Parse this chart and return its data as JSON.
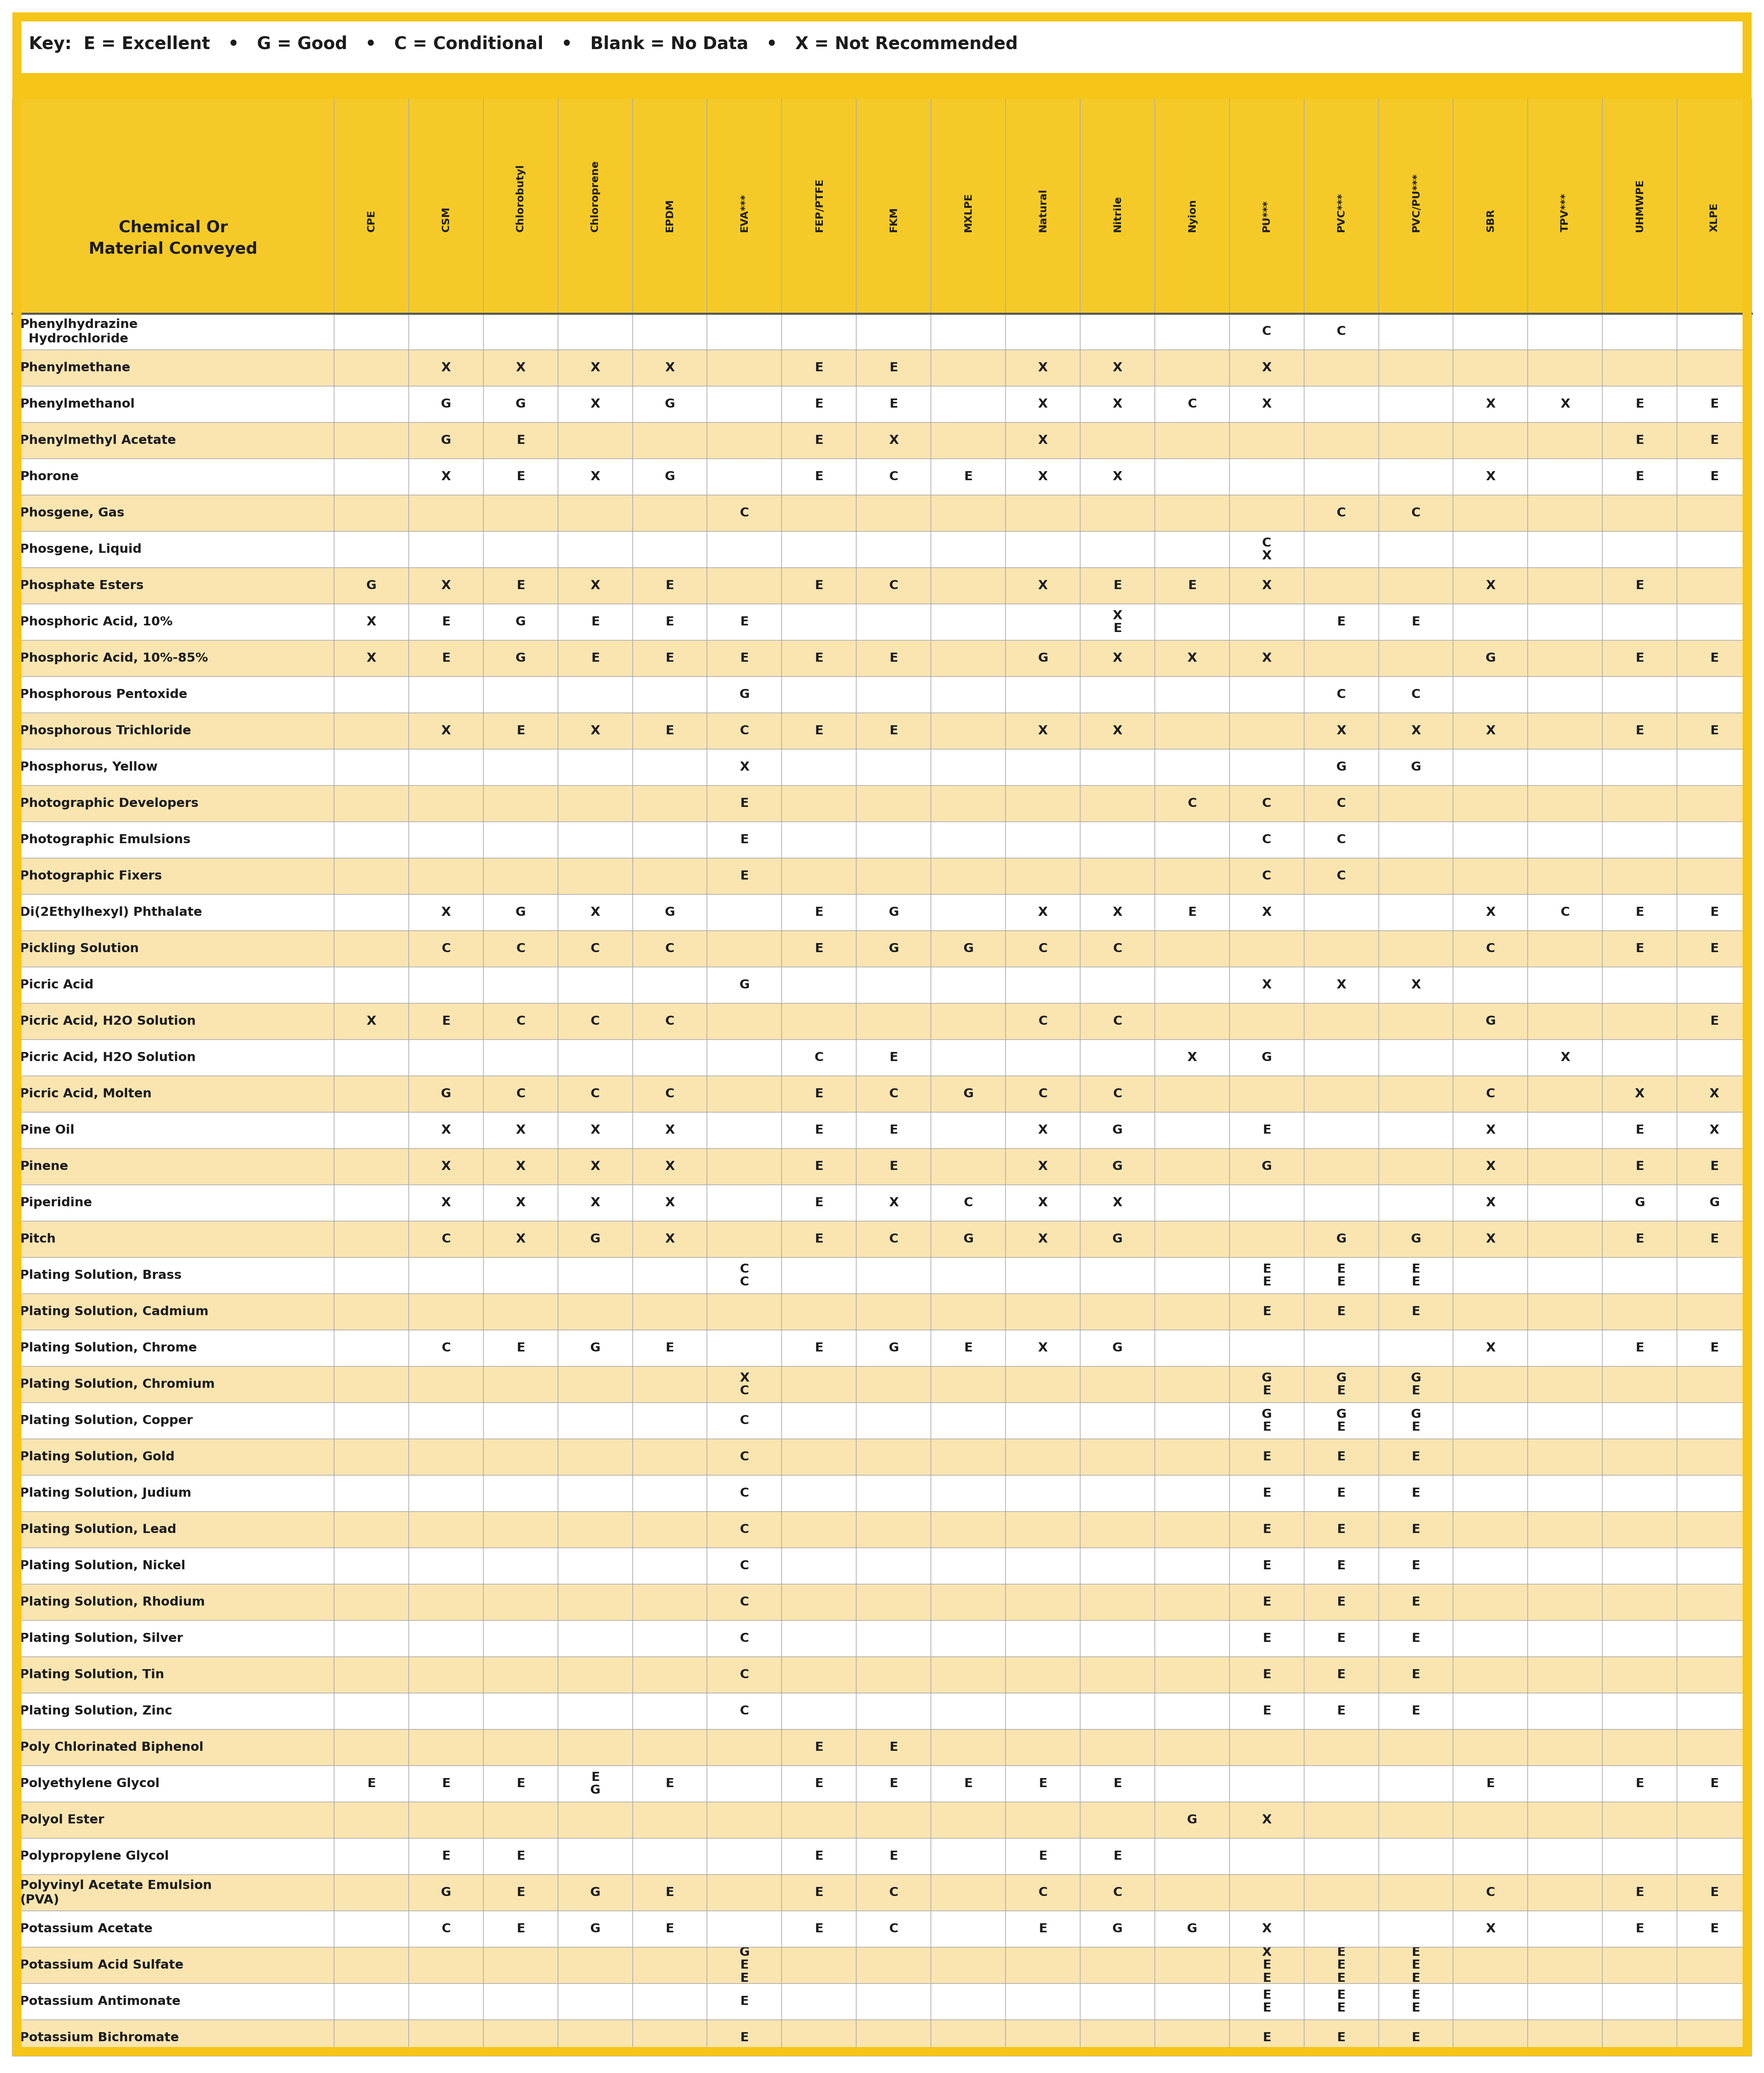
{
  "key_text": "Key:  E = Excellent   •   G = Good   •   C = Conditional   •   Blank = No Data   •   X = Not Recommended",
  "col_headers": [
    "CPE",
    "CSM",
    "Chlorobutyl",
    "Chloroprene",
    "EPDM",
    "EVA***",
    "FEP/PTFE",
    "FKM",
    "MXLPE",
    "Natural",
    "Nitrile",
    "Nyion",
    "PU***",
    "PVC***",
    "PVC/PU***",
    "SBR",
    "TPV***",
    "UHMWPE",
    "XLPE"
  ],
  "rows": [
    [
      "Phenylhydrazine\n  Hydrochloride",
      "",
      "",
      "",
      "",
      "",
      "",
      "",
      "",
      "",
      "",
      "",
      "",
      "C",
      "C",
      "",
      "",
      "",
      "",
      ""
    ],
    [
      "Phenylmethane",
      "",
      "X",
      "X",
      "X",
      "X",
      "",
      "E",
      "E",
      "",
      "X",
      "X",
      "",
      "X",
      "",
      "",
      "",
      "",
      "",
      ""
    ],
    [
      "Phenylmethanol",
      "",
      "G",
      "G",
      "X",
      "G",
      "",
      "E",
      "E",
      "",
      "X",
      "X",
      "C",
      "X",
      "",
      "",
      "X",
      "X",
      "E",
      "E"
    ],
    [
      "Phenylmethyl Acetate",
      "",
      "G",
      "E",
      "",
      "",
      "",
      "E",
      "X",
      "",
      "X",
      "",
      "",
      "",
      "",
      "",
      "",
      "",
      "E",
      "E"
    ],
    [
      "Phorone",
      "",
      "X",
      "E",
      "X",
      "G",
      "",
      "E",
      "C",
      "E",
      "X",
      "X",
      "",
      "",
      "",
      "",
      "X",
      "",
      "E",
      "E"
    ],
    [
      "Phosgene, Gas",
      "",
      "",
      "",
      "",
      "",
      "C",
      "",
      "",
      "",
      "",
      "",
      "",
      "",
      "C",
      "C",
      "",
      "",
      "",
      ""
    ],
    [
      "Phosgene, Liquid",
      "",
      "",
      "",
      "",
      "",
      "",
      "",
      "",
      "",
      "",
      "",
      "",
      "C\nX",
      "",
      "",
      "",
      "",
      "",
      ""
    ],
    [
      "Phosphate Esters",
      "G",
      "X",
      "E",
      "X",
      "E",
      "",
      "E",
      "C",
      "",
      "X",
      "E",
      "E",
      "X",
      "",
      "",
      "X",
      "",
      "E",
      ""
    ],
    [
      "Phosphoric Acid, 10%",
      "X",
      "E",
      "G",
      "E",
      "E",
      "E",
      "",
      "",
      "",
      "",
      "X\nE",
      "",
      "",
      "E",
      "E",
      "",
      "",
      "",
      ""
    ],
    [
      "Phosphoric Acid, 10%-85%",
      "X",
      "E",
      "G",
      "E",
      "E",
      "E",
      "E",
      "E",
      "",
      "G",
      "X",
      "X",
      "X",
      "",
      "",
      "G",
      "",
      "E",
      "E"
    ],
    [
      "Phosphorous Pentoxide",
      "",
      "",
      "",
      "",
      "",
      "G",
      "",
      "",
      "",
      "",
      "",
      "",
      "",
      "C",
      "C",
      "",
      "",
      "",
      ""
    ],
    [
      "Phosphorous Trichloride",
      "",
      "X",
      "E",
      "X",
      "E",
      "C",
      "E",
      "E",
      "",
      "X",
      "X",
      "",
      "",
      "X",
      "X",
      "X",
      "",
      "E",
      "E"
    ],
    [
      "Phosphorus, Yellow",
      "",
      "",
      "",
      "",
      "",
      "X",
      "",
      "",
      "",
      "",
      "",
      "",
      "",
      "G",
      "G",
      "",
      "",
      "",
      ""
    ],
    [
      "Photographic Developers",
      "",
      "",
      "",
      "",
      "",
      "E",
      "",
      "",
      "",
      "",
      "",
      "C",
      "C",
      "C",
      "",
      "",
      "",
      "",
      ""
    ],
    [
      "Photographic Emulsions",
      "",
      "",
      "",
      "",
      "",
      "E",
      "",
      "",
      "",
      "",
      "",
      "",
      "C",
      "C",
      "",
      "",
      "",
      "",
      ""
    ],
    [
      "Photographic Fixers",
      "",
      "",
      "",
      "",
      "",
      "E",
      "",
      "",
      "",
      "",
      "",
      "",
      "C",
      "C",
      "",
      "",
      "",
      "",
      ""
    ],
    [
      "Di(2Ethylhexyl) Phthalate",
      "",
      "X",
      "G",
      "X",
      "G",
      "",
      "E",
      "G",
      "",
      "X",
      "X",
      "E",
      "X",
      "",
      "",
      "X",
      "C",
      "E",
      "E"
    ],
    [
      "Pickling Solution",
      "",
      "C",
      "C",
      "C",
      "C",
      "",
      "E",
      "G",
      "G",
      "C",
      "C",
      "",
      "",
      "",
      "",
      "C",
      "",
      "E",
      "E"
    ],
    [
      "Picric Acid",
      "",
      "",
      "",
      "",
      "",
      "G",
      "",
      "",
      "",
      "",
      "",
      "",
      "X",
      "X",
      "X",
      "",
      "",
      "",
      ""
    ],
    [
      "Picric Acid, H2O Solution",
      "X",
      "E",
      "C",
      "C",
      "C",
      "",
      "",
      "",
      "",
      "C",
      "C",
      "",
      "",
      "",
      "",
      "G",
      "",
      "",
      "E"
    ],
    [
      "Picric Acid, H2O Solution",
      "",
      "",
      "",
      "",
      "",
      "",
      "C",
      "E",
      "",
      "",
      "",
      "X",
      "G",
      "",
      "",
      "",
      "X",
      "",
      ""
    ],
    [
      "Picric Acid, Molten",
      "",
      "G",
      "C",
      "C",
      "C",
      "",
      "E",
      "C",
      "G",
      "C",
      "C",
      "",
      "",
      "",
      "",
      "C",
      "",
      "X",
      "X"
    ],
    [
      "Pine Oil",
      "",
      "X",
      "X",
      "X",
      "X",
      "",
      "E",
      "E",
      "",
      "X",
      "G",
      "",
      "E",
      "",
      "",
      "X",
      "",
      "E",
      "X"
    ],
    [
      "Pinene",
      "",
      "X",
      "X",
      "X",
      "X",
      "",
      "E",
      "E",
      "",
      "X",
      "G",
      "",
      "G",
      "",
      "",
      "X",
      "",
      "E",
      "E"
    ],
    [
      "Piperidine",
      "",
      "X",
      "X",
      "X",
      "X",
      "",
      "E",
      "X",
      "C",
      "X",
      "X",
      "",
      "",
      "",
      "",
      "X",
      "",
      "G",
      "G"
    ],
    [
      "Pitch",
      "",
      "C",
      "X",
      "G",
      "X",
      "",
      "E",
      "C",
      "G",
      "X",
      "G",
      "",
      "",
      "G",
      "G",
      "X",
      "",
      "E",
      "E"
    ],
    [
      "Plating Solution, Brass",
      "",
      "",
      "",
      "",
      "",
      "C\nC",
      "",
      "",
      "",
      "",
      "",
      "",
      "E\nE",
      "E\nE",
      "E\nE",
      "",
      "",
      "",
      ""
    ],
    [
      "Plating Solution, Cadmium",
      "",
      "",
      "",
      "",
      "",
      "",
      "",
      "",
      "",
      "",
      "",
      "",
      "E",
      "E",
      "E",
      "",
      "",
      "",
      ""
    ],
    [
      "Plating Solution, Chrome",
      "",
      "C",
      "E",
      "G",
      "E",
      "",
      "E",
      "G",
      "E",
      "X",
      "G",
      "",
      "",
      "",
      "",
      "X",
      "",
      "E",
      "E"
    ],
    [
      "Plating Solution, Chromium",
      "",
      "",
      "",
      "",
      "",
      "X\nC",
      "",
      "",
      "",
      "",
      "",
      "",
      "G\nE",
      "G\nE",
      "G\nE",
      "",
      "",
      "",
      ""
    ],
    [
      "Plating Solution, Copper",
      "",
      "",
      "",
      "",
      "",
      "C",
      "",
      "",
      "",
      "",
      "",
      "",
      "G\nE",
      "G\nE",
      "G\nE",
      "",
      "",
      "",
      ""
    ],
    [
      "Plating Solution, Gold",
      "",
      "",
      "",
      "",
      "",
      "C",
      "",
      "",
      "",
      "",
      "",
      "",
      "E",
      "E",
      "E",
      "",
      "",
      "",
      ""
    ],
    [
      "Plating Solution, Judium",
      "",
      "",
      "",
      "",
      "",
      "C",
      "",
      "",
      "",
      "",
      "",
      "",
      "E",
      "E",
      "E",
      "",
      "",
      "",
      ""
    ],
    [
      "Plating Solution, Lead",
      "",
      "",
      "",
      "",
      "",
      "C",
      "",
      "",
      "",
      "",
      "",
      "",
      "E",
      "E",
      "E",
      "",
      "",
      "",
      ""
    ],
    [
      "Plating Solution, Nickel",
      "",
      "",
      "",
      "",
      "",
      "C",
      "",
      "",
      "",
      "",
      "",
      "",
      "E",
      "E",
      "E",
      "",
      "",
      "",
      ""
    ],
    [
      "Plating Solution, Rhodium",
      "",
      "",
      "",
      "",
      "",
      "C",
      "",
      "",
      "",
      "",
      "",
      "",
      "E",
      "E",
      "E",
      "",
      "",
      "",
      ""
    ],
    [
      "Plating Solution, Silver",
      "",
      "",
      "",
      "",
      "",
      "C",
      "",
      "",
      "",
      "",
      "",
      "",
      "E",
      "E",
      "E",
      "",
      "",
      "",
      ""
    ],
    [
      "Plating Solution, Tin",
      "",
      "",
      "",
      "",
      "",
      "C",
      "",
      "",
      "",
      "",
      "",
      "",
      "E",
      "E",
      "E",
      "",
      "",
      "",
      ""
    ],
    [
      "Plating Solution, Zinc",
      "",
      "",
      "",
      "",
      "",
      "C",
      "",
      "",
      "",
      "",
      "",
      "",
      "E",
      "E",
      "E",
      "",
      "",
      "",
      ""
    ],
    [
      "Poly Chlorinated Biphenol",
      "",
      "",
      "",
      "",
      "",
      "",
      "E",
      "E",
      "",
      "",
      "",
      "",
      "",
      "",
      "",
      "",
      "",
      "",
      ""
    ],
    [
      "Polyethylene Glycol",
      "E",
      "E",
      "E",
      "E\nG",
      "E",
      "",
      "E",
      "E",
      "E",
      "E",
      "E",
      "",
      "",
      "",
      "",
      "E",
      "",
      "E",
      "E"
    ],
    [
      "Polyol Ester",
      "",
      "",
      "",
      "",
      "",
      "",
      "",
      "",
      "",
      "",
      "",
      "G",
      "X",
      "",
      "",
      "",
      "",
      "",
      ""
    ],
    [
      "Polypropylene Glycol",
      "",
      "E",
      "E",
      "",
      "",
      "",
      "E",
      "E",
      "",
      "E",
      "E",
      "",
      "",
      "",
      "",
      "",
      "",
      "",
      ""
    ],
    [
      "Polyvinyl Acetate Emulsion\n(PVA)",
      "",
      "G",
      "E",
      "G",
      "E",
      "",
      "E",
      "C",
      "",
      "C",
      "C",
      "",
      "",
      "",
      "",
      "C",
      "",
      "E",
      "E"
    ],
    [
      "Potassium Acetate",
      "",
      "C",
      "E",
      "G",
      "E",
      "",
      "E",
      "C",
      "",
      "E",
      "G",
      "G",
      "X",
      "",
      "",
      "X",
      "",
      "E",
      "E"
    ],
    [
      "Potassium Acid Sulfate",
      "",
      "",
      "",
      "",
      "",
      "G\nE\nE",
      "",
      "",
      "",
      "",
      "",
      "",
      "X\nE\nE",
      "E\nE\nE",
      "E\nE\nE",
      "",
      "",
      "",
      ""
    ],
    [
      "Potassium Antimonate",
      "",
      "",
      "",
      "",
      "",
      "E",
      "",
      "",
      "",
      "",
      "",
      "",
      "E\nE",
      "E\nE",
      "E\nE",
      "",
      "",
      "",
      ""
    ],
    [
      "Potassium Bichromate",
      "",
      "",
      "",
      "",
      "",
      "E",
      "",
      "",
      "",
      "",
      "",
      "",
      "E",
      "E",
      "E",
      "",
      "",
      "",
      ""
    ]
  ],
  "yellow": "#F5C518",
  "header_bg": "#F5CA28",
  "row_white": "#FFFFFF",
  "row_tan": "#FAE5B0",
  "grid_color": "#AAAAAA",
  "text_color": "#1C1C1C",
  "key_border": "#F5CA28",
  "fig_w": 42.77,
  "fig_h": 50.25
}
